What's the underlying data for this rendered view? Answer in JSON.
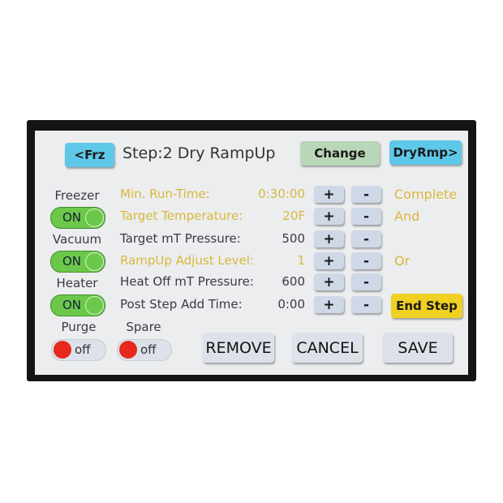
{
  "header": {
    "prev_label": "<Frz",
    "title": "Step:2 Dry RampUp",
    "change_label": "Change",
    "next_label": "DryRmp>"
  },
  "toggles": [
    {
      "label": "Freezer",
      "state": "ON"
    },
    {
      "label": "Vacuum",
      "state": "ON"
    },
    {
      "label": "Heater",
      "state": "ON"
    },
    {
      "label": "Purge",
      "state": "off"
    },
    {
      "label": "Spare",
      "state": "off"
    }
  ],
  "params": [
    {
      "label": "Min. Run-Time:",
      "value": "0:30:00",
      "highlight": true
    },
    {
      "label": "Target Temperature:",
      "value": "20F",
      "highlight": true
    },
    {
      "label": "Target mT Pressure:",
      "value": "500",
      "highlight": false
    },
    {
      "label": "RampUp Adjust Level:",
      "value": "1",
      "highlight": true
    },
    {
      "label": "Heat Off mT Pressure:",
      "value": "600",
      "highlight": false
    },
    {
      "label": "Post Step Add Time:",
      "value": "0:00",
      "highlight": false
    }
  ],
  "stepper": {
    "plus": "+",
    "minus": "-"
  },
  "conditions": [
    "Complete",
    "And",
    "Or"
  ],
  "end_step_label": "End Step",
  "footer": {
    "remove_label": "REMOVE",
    "cancel_label": "CANCEL",
    "save_label": "SAVE"
  },
  "colors": {
    "highlight": "#d9b83a",
    "cyan": "#5ec8e8",
    "on": "#6cc84a",
    "off": "#e8281c",
    "end_step": "#f0d020"
  }
}
